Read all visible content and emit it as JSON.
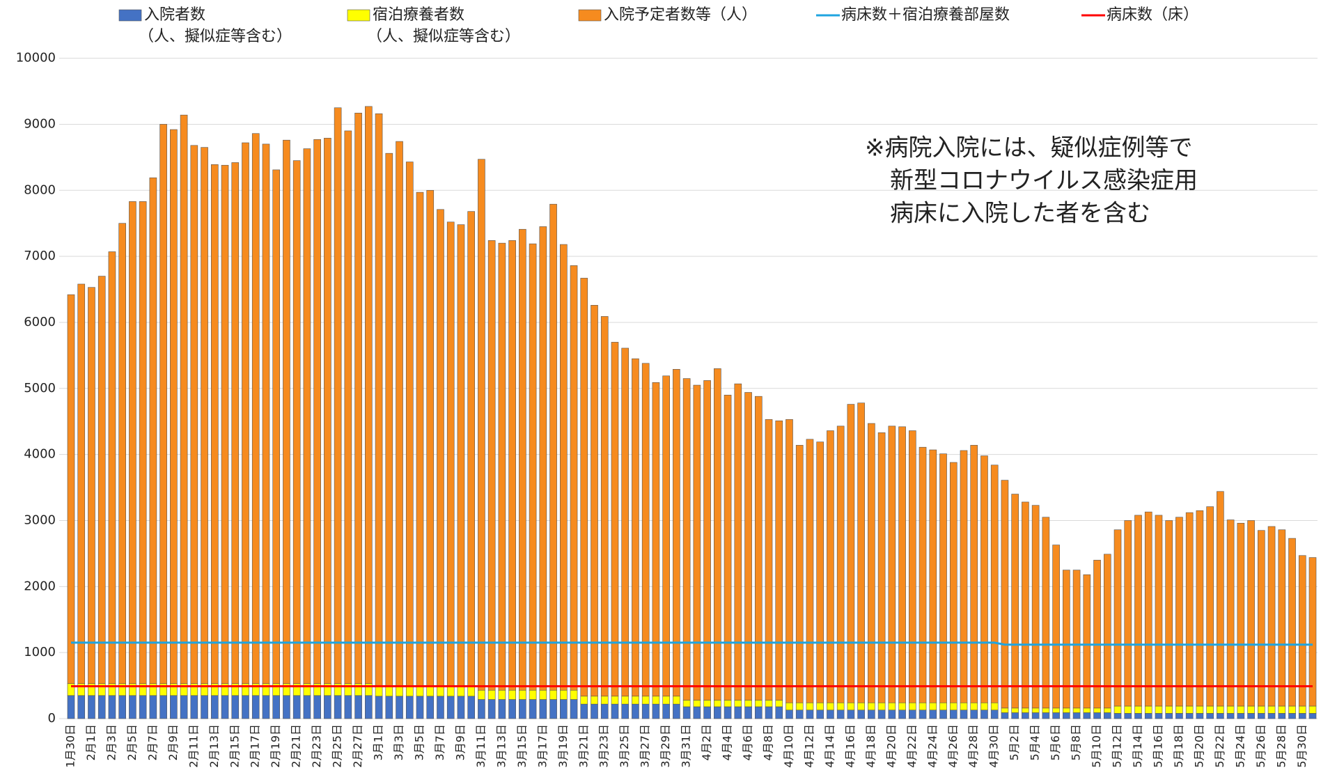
{
  "chart_data": {
    "type": "bar",
    "stacked": true,
    "grid": true,
    "legend": "top",
    "annotation": [
      "※病院入院には、疑似症例等で",
      "新型コロナウイルス感染症用",
      "病床に入院した者を含む"
    ],
    "ylim": [
      0,
      10000
    ],
    "yticks": [
      0,
      1000,
      2000,
      3000,
      4000,
      5000,
      6000,
      7000,
      8000,
      9000,
      10000
    ],
    "categories": [
      "1月30日",
      null,
      "2月1日",
      null,
      "2月3日",
      null,
      "2月5日",
      null,
      "2月7日",
      null,
      "2月9日",
      null,
      "2月11日",
      null,
      "2月13日",
      null,
      "2月15日",
      null,
      "2月17日",
      null,
      "2月19日",
      null,
      "2月21日",
      null,
      "2月23日",
      null,
      "2月25日",
      null,
      "2月27日",
      null,
      "3月1日",
      null,
      "3月3日",
      null,
      "3月5日",
      null,
      "3月7日",
      null,
      "3月9日",
      null,
      "3月11日",
      null,
      "3月13日",
      null,
      "3月15日",
      null,
      "3月17日",
      null,
      "3月19日",
      null,
      "3月21日",
      null,
      "3月23日",
      null,
      "3月25日",
      null,
      "3月27日",
      null,
      "3月29日",
      null,
      "3月31日",
      null,
      "4月2日",
      null,
      "4月4日",
      null,
      "4月6日",
      null,
      "4月8日",
      null,
      "4月10日",
      null,
      "4月12日",
      null,
      "4月14日",
      null,
      "4月16日",
      null,
      "4月18日",
      null,
      "4月20日",
      null,
      "4月22日",
      null,
      "4月24日",
      null,
      "4月26日",
      null,
      "4月28日",
      null,
      "4月30日",
      null,
      "5月2日",
      null,
      "5月4日",
      null,
      "5月6日",
      null,
      "5月8日",
      null,
      "5月10日",
      null,
      "5月12日",
      null,
      "5月14日",
      null,
      "5月16日",
      null,
      "5月18日",
      null,
      "5月20日",
      null,
      "5月22日",
      null,
      "5月24日",
      null,
      "5月26日",
      null,
      "5月28日",
      null,
      "5月30日",
      null
    ],
    "series": [
      {
        "name": "入院者数\n（人、擬似症等含む）",
        "type": "bar",
        "color": "#4472c4",
        "values": [
          350,
          350,
          350,
          350,
          350,
          350,
          350,
          350,
          350,
          350,
          350,
          350,
          350,
          350,
          350,
          350,
          350,
          350,
          350,
          350,
          350,
          350,
          350,
          350,
          350,
          350,
          350,
          350,
          350,
          350,
          340,
          340,
          340,
          340,
          340,
          340,
          340,
          340,
          340,
          340,
          290,
          290,
          290,
          290,
          290,
          290,
          290,
          290,
          290,
          290,
          220,
          220,
          220,
          220,
          220,
          220,
          220,
          220,
          220,
          220,
          180,
          180,
          180,
          180,
          180,
          180,
          180,
          180,
          180,
          180,
          130,
          130,
          130,
          130,
          130,
          130,
          130,
          130,
          130,
          130,
          130,
          130,
          130,
          130,
          130,
          130,
          130,
          130,
          130,
          130,
          130,
          90,
          90,
          90,
          90,
          90,
          90,
          90,
          90,
          90,
          90,
          90,
          80,
          80,
          80,
          80,
          80,
          80,
          80,
          80,
          80,
          80,
          80,
          80,
          80,
          80,
          80,
          80,
          80,
          80,
          80,
          80
        ]
      },
      {
        "name": "宿泊療養者数\n（人、擬似症等含む）",
        "type": "bar",
        "color": "#ffff00",
        "values": [
          180,
          180,
          180,
          180,
          180,
          180,
          180,
          180,
          180,
          180,
          180,
          180,
          180,
          180,
          180,
          180,
          180,
          180,
          180,
          180,
          180,
          180,
          180,
          180,
          180,
          180,
          180,
          180,
          180,
          180,
          160,
          160,
          160,
          160,
          160,
          160,
          160,
          160,
          160,
          160,
          140,
          140,
          140,
          140,
          140,
          140,
          140,
          140,
          140,
          140,
          120,
          120,
          120,
          120,
          120,
          120,
          120,
          120,
          120,
          120,
          100,
          100,
          100,
          100,
          100,
          100,
          100,
          100,
          100,
          100,
          110,
          110,
          110,
          110,
          110,
          110,
          110,
          110,
          110,
          110,
          110,
          110,
          110,
          110,
          110,
          110,
          110,
          110,
          110,
          110,
          110,
          70,
          70,
          70,
          70,
          70,
          70,
          70,
          70,
          70,
          70,
          70,
          110,
          110,
          110,
          110,
          110,
          110,
          110,
          110,
          110,
          110,
          110,
          110,
          110,
          110,
          110,
          110,
          110,
          110,
          110,
          110
        ]
      },
      {
        "name": "入院予定者数等（人）",
        "type": "bar",
        "color": "#f68b1f",
        "values": [
          5890,
          6050,
          6000,
          6170,
          6540,
          6970,
          7300,
          7300,
          7660,
          8470,
          8390,
          8610,
          8150,
          8120,
          7860,
          7850,
          7890,
          8190,
          8330,
          8170,
          7780,
          8230,
          7920,
          8100,
          8240,
          8260,
          8720,
          8370,
          8640,
          8740,
          8660,
          8060,
          8240,
          7930,
          7470,
          7500,
          7210,
          7020,
          6980,
          7180,
          8040,
          6810,
          6770,
          6810,
          6980,
          6760,
          7020,
          7360,
          6750,
          6430,
          6330,
          5920,
          5750,
          5360,
          5270,
          5110,
          5040,
          4750,
          4850,
          4950,
          4870,
          4770,
          4840,
          5020,
          4620,
          4790,
          4660,
          4600,
          4250,
          4230,
          4290,
          3900,
          3990,
          3950,
          4120,
          4190,
          4520,
          4540,
          4230,
          4090,
          4190,
          4180,
          4120,
          3870,
          3830,
          3770,
          3640,
          3820,
          3900,
          3740,
          3600,
          3450,
          3240,
          3120,
          3070,
          2890,
          2470,
          2090,
          2090,
          2020,
          2240,
          2330,
          2670,
          2810,
          2890,
          2940,
          2890,
          2810,
          2860,
          2930,
          2960,
          3020,
          3250,
          2820,
          2770,
          2810,
          2660,
          2720,
          2670,
          2540,
          2280,
          2250
        ]
      },
      {
        "name": "病床数＋宿泊療養部屋数",
        "type": "line",
        "color": "#1fa5e0",
        "values": [
          1150,
          1150,
          1150,
          1150,
          1150,
          1150,
          1150,
          1150,
          1150,
          1150,
          1150,
          1150,
          1150,
          1150,
          1150,
          1150,
          1150,
          1150,
          1150,
          1150,
          1150,
          1150,
          1150,
          1150,
          1150,
          1150,
          1150,
          1150,
          1150,
          1150,
          1150,
          1150,
          1150,
          1150,
          1150,
          1150,
          1150,
          1150,
          1150,
          1150,
          1150,
          1150,
          1150,
          1150,
          1150,
          1150,
          1150,
          1150,
          1150,
          1150,
          1150,
          1150,
          1150,
          1150,
          1150,
          1150,
          1150,
          1150,
          1150,
          1150,
          1150,
          1150,
          1150,
          1150,
          1150,
          1150,
          1150,
          1150,
          1150,
          1150,
          1150,
          1150,
          1150,
          1150,
          1150,
          1150,
          1150,
          1150,
          1150,
          1150,
          1150,
          1150,
          1150,
          1150,
          1150,
          1150,
          1150,
          1150,
          1150,
          1150,
          1150,
          1120,
          1120,
          1120,
          1120,
          1120,
          1120,
          1120,
          1120,
          1120,
          1120,
          1120,
          1120,
          1120,
          1120,
          1120,
          1120,
          1120,
          1120,
          1120,
          1120,
          1120,
          1120,
          1120,
          1120,
          1120,
          1120,
          1120,
          1120,
          1120,
          1120,
          1120
        ]
      },
      {
        "name": "病床数（床）",
        "type": "line",
        "color": "#ff0000",
        "values": [
          490,
          490,
          490,
          490,
          490,
          490,
          490,
          490,
          490,
          490,
          490,
          490,
          490,
          490,
          490,
          490,
          490,
          490,
          490,
          490,
          490,
          490,
          490,
          490,
          490,
          490,
          490,
          490,
          490,
          490,
          490,
          490,
          490,
          490,
          490,
          490,
          490,
          490,
          490,
          490,
          490,
          490,
          490,
          490,
          490,
          490,
          490,
          490,
          490,
          490,
          490,
          490,
          490,
          490,
          490,
          490,
          490,
          490,
          490,
          490,
          490,
          490,
          490,
          490,
          490,
          490,
          490,
          490,
          490,
          490,
          490,
          490,
          490,
          490,
          490,
          490,
          490,
          490,
          490,
          490,
          490,
          490,
          490,
          490,
          490,
          490,
          490,
          490,
          490,
          490,
          490,
          490,
          490,
          490,
          490,
          490,
          490,
          490,
          490,
          490,
          490,
          490,
          490,
          490,
          490,
          490,
          490,
          490,
          490,
          490,
          490,
          490,
          490,
          490,
          490,
          490,
          490,
          490,
          490,
          490,
          490,
          490
        ]
      }
    ]
  }
}
